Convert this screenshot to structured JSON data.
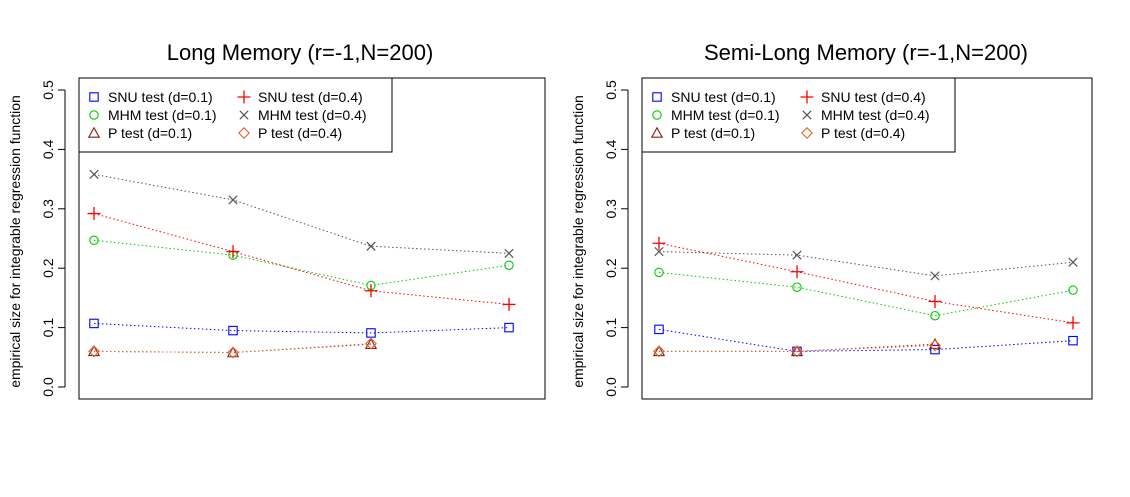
{
  "chart_data": [
    {
      "type": "line",
      "title": "Long Memory (r=-1,N=200)",
      "xlabel": "",
      "ylabel": "empirical size for integrable regression function",
      "ylim": [
        0,
        0.5
      ],
      "yticks": [
        "0.0",
        "0.1",
        "0.2",
        "0.3",
        "0.4",
        "0.5"
      ],
      "x": [
        1,
        2,
        3,
        4
      ],
      "legend_position": "top-left",
      "series": [
        {
          "name": "SNU test (d=0.1)",
          "marker": "square",
          "color": "#0000ff",
          "values": [
            0.107,
            0.095,
            0.091,
            0.1
          ]
        },
        {
          "name": "MHM test (d=0.1)",
          "marker": "circle",
          "color": "#00cc00",
          "values": [
            0.247,
            0.222,
            0.171,
            0.205
          ]
        },
        {
          "name": "P test (d=0.1)",
          "marker": "triangle",
          "color": "#8b1a1a",
          "values": [
            0.06,
            0.058,
            0.072,
            null
          ]
        },
        {
          "name": "SNU test (d=0.4)",
          "marker": "plus",
          "color": "#ff0000",
          "values": [
            0.292,
            0.228,
            0.162,
            0.139
          ]
        },
        {
          "name": "MHM test (d=0.4)",
          "marker": "cross",
          "color": "#555555",
          "values": [
            0.358,
            0.315,
            0.237,
            0.225
          ]
        },
        {
          "name": "P test (d=0.4)",
          "marker": "diamond",
          "color": "#e8642a",
          "values": [
            0.06,
            0.058,
            0.073,
            null
          ]
        }
      ]
    },
    {
      "type": "line",
      "title": "Semi-Long Memory (r=-1,N=200)",
      "xlabel": "",
      "ylabel": "empirical size for integrable regression function",
      "ylim": [
        0,
        0.5
      ],
      "yticks": [
        "0.0",
        "0.1",
        "0.2",
        "0.3",
        "0.4",
        "0.5"
      ],
      "x": [
        1,
        2,
        3,
        4
      ],
      "legend_position": "top-left",
      "series": [
        {
          "name": "SNU test (d=0.1)",
          "marker": "square",
          "color": "#0000ff",
          "values": [
            0.097,
            0.06,
            0.063,
            0.078
          ]
        },
        {
          "name": "MHM test (d=0.1)",
          "marker": "circle",
          "color": "#00cc00",
          "values": [
            0.193,
            0.168,
            0.12,
            0.163
          ]
        },
        {
          "name": "P test (d=0.1)",
          "marker": "triangle",
          "color": "#8b1a1a",
          "values": [
            0.06,
            0.06,
            0.072,
            null
          ]
        },
        {
          "name": "SNU test (d=0.4)",
          "marker": "plus",
          "color": "#ff0000",
          "values": [
            0.242,
            0.194,
            0.144,
            0.108
          ]
        },
        {
          "name": "MHM test (d=0.4)",
          "marker": "cross",
          "color": "#555555",
          "values": [
            0.228,
            0.222,
            0.187,
            0.21
          ]
        },
        {
          "name": "P test (d=0.4)",
          "marker": "diamond",
          "color": "#e8642a",
          "values": [
            0.06,
            0.06,
            0.07,
            null
          ]
        }
      ]
    }
  ]
}
